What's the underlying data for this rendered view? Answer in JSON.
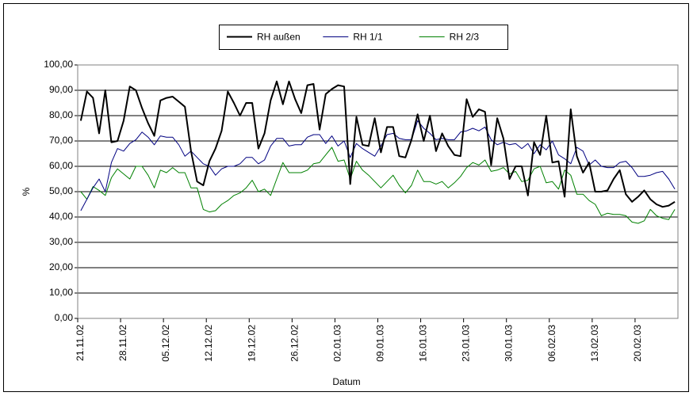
{
  "chart_data": {
    "type": "line",
    "x_label": "Datum",
    "y_label": "%",
    "categories": [
      "21.11.02",
      null,
      null,
      null,
      null,
      null,
      null,
      "28.11.02",
      null,
      null,
      null,
      null,
      null,
      null,
      "05.12.02",
      null,
      null,
      null,
      null,
      null,
      null,
      "12.12.02",
      null,
      null,
      null,
      null,
      null,
      null,
      "19.12.02",
      null,
      null,
      null,
      null,
      null,
      null,
      "26.12.02",
      null,
      null,
      null,
      null,
      null,
      null,
      "02.01.03",
      null,
      null,
      null,
      null,
      null,
      null,
      "09.01.03",
      null,
      null,
      null,
      null,
      null,
      null,
      "16.01.03",
      null,
      null,
      null,
      null,
      null,
      null,
      "23.01.03",
      null,
      null,
      null,
      null,
      null,
      null,
      "30.01.03",
      null,
      null,
      null,
      null,
      null,
      null,
      "06.02.03",
      null,
      null,
      null,
      null,
      null,
      null,
      "13.02.03",
      null,
      null,
      null,
      null,
      null,
      null,
      "20.02.03",
      null,
      null,
      null,
      null,
      null,
      null
    ],
    "series": [
      {
        "name": "RH außen",
        "color": "#000000",
        "values": [
          78,
          89.5,
          87,
          73,
          90,
          69.5,
          70,
          78,
          91.5,
          90,
          83,
          77,
          72,
          86,
          87,
          87.5,
          85.5,
          83.5,
          66,
          54,
          52.5,
          62,
          67,
          74,
          89.5,
          85,
          80,
          85,
          85,
          67,
          73,
          86,
          93.5,
          84.5,
          93.5,
          86.5,
          81,
          92,
          92.5,
          74.5,
          88.5,
          90.5,
          92,
          91.5,
          53,
          79.5,
          68.5,
          68,
          79,
          65.5,
          75.5,
          75.5,
          64,
          63.5,
          70.5,
          80.5,
          70,
          80,
          66,
          73,
          68,
          64.5,
          64,
          86.5,
          79.5,
          82.5,
          81.5,
          60.5,
          79,
          71,
          55,
          60,
          60,
          48.5,
          69.5,
          64.5,
          80,
          61.5,
          62,
          48,
          82.5,
          64,
          57.5,
          61.5,
          50,
          50,
          50.5,
          55,
          58.5,
          49,
          46,
          48,
          50.5,
          47,
          45,
          44,
          44.5,
          46
        ]
      },
      {
        "name": "RH 1/1",
        "color": "#000080",
        "values": [
          42.5,
          47,
          51.5,
          55,
          50,
          61.5,
          67,
          66,
          69,
          70.5,
          73.5,
          71.5,
          68.5,
          72,
          71.5,
          71.5,
          68.5,
          64,
          66,
          63.5,
          61,
          60,
          56.5,
          59,
          60,
          60,
          61,
          63.5,
          63.5,
          61,
          62.5,
          68,
          71,
          71,
          68,
          68.5,
          68.5,
          71.5,
          72.5,
          72.5,
          69,
          72,
          68,
          70,
          63.5,
          69,
          67,
          65.5,
          64,
          68,
          72.5,
          73,
          71,
          70.5,
          70.5,
          78,
          75,
          73,
          70.5,
          71,
          70.5,
          70.5,
          73.5,
          74,
          75,
          74,
          75.5,
          70.5,
          68.5,
          69.5,
          68.5,
          69,
          67,
          69,
          65,
          68.5,
          66.5,
          70,
          64.5,
          63,
          61,
          67.5,
          66,
          60.5,
          62.5,
          60,
          59.5,
          59.5,
          61.5,
          62,
          59.5,
          56,
          56,
          56.5,
          57.5,
          58,
          55,
          51
        ]
      },
      {
        "name": "RH 2/3",
        "color": "#008000",
        "values": [
          50,
          47,
          52,
          50.5,
          48.5,
          55.5,
          59,
          57,
          55,
          60,
          60,
          56.5,
          51.5,
          58.5,
          57.5,
          59.5,
          57.5,
          57.5,
          51.5,
          51.5,
          43,
          42,
          42.5,
          45,
          46.5,
          48.5,
          49.5,
          51.5,
          54.5,
          50,
          51,
          48.5,
          55,
          61.5,
          57.5,
          57.5,
          57.5,
          58.5,
          61,
          61.5,
          64.5,
          67.5,
          62,
          62.5,
          55,
          62,
          58.5,
          56.5,
          54,
          51.5,
          54,
          56.5,
          52.5,
          49.5,
          52.5,
          58.5,
          54,
          54,
          53,
          54,
          51.5,
          53.5,
          56,
          59.5,
          61.5,
          60.5,
          62.5,
          58,
          58.5,
          59.5,
          57,
          58,
          54,
          54.5,
          59,
          60,
          53.5,
          54,
          51,
          58.5,
          56.5,
          49,
          49,
          46.5,
          45,
          40.5,
          41.5,
          41,
          41,
          40.5,
          38,
          37.5,
          38.5,
          43,
          40.5,
          39.5,
          39,
          43
        ]
      }
    ],
    "ylim": [
      0,
      100
    ],
    "yticks": [
      {
        "value": 0,
        "label": "0,00"
      },
      {
        "value": 10,
        "label": "10,00"
      },
      {
        "value": 20,
        "label": "20,00"
      },
      {
        "value": 30,
        "label": "30,00"
      },
      {
        "value": 40,
        "label": "40,00"
      },
      {
        "value": 50,
        "label": "50,00"
      },
      {
        "value": 60,
        "label": "60,00"
      },
      {
        "value": 70,
        "label": "70,00"
      },
      {
        "value": 80,
        "label": "80,00"
      },
      {
        "value": 90,
        "label": "90,00"
      },
      {
        "value": 100,
        "label": "100,00"
      }
    ],
    "grid": true,
    "legend": "top"
  }
}
